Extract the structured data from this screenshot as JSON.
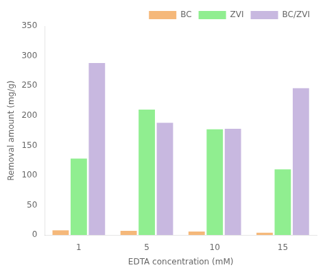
{
  "chart_data": {
    "type": "bar",
    "xlabel": "EDTA concentration (mM)",
    "ylabel": "Removal amount (mg/g)",
    "categories": [
      "1",
      "5",
      "10",
      "15"
    ],
    "series": [
      {
        "name": "BC",
        "color": "#f5b87a",
        "values": [
          8,
          7,
          6,
          4
        ]
      },
      {
        "name": "ZVI",
        "color": "#90ee90",
        "values": [
          128,
          210,
          177,
          110
        ]
      },
      {
        "name": "BC/ZVI",
        "color": "#c8b8e0",
        "values": [
          288,
          188,
          178,
          246
        ]
      }
    ],
    "ylim": [
      0,
      350
    ],
    "yticks": [
      0,
      50,
      100,
      150,
      200,
      250,
      300,
      350
    ],
    "grid": false,
    "legend": "upper right"
  }
}
